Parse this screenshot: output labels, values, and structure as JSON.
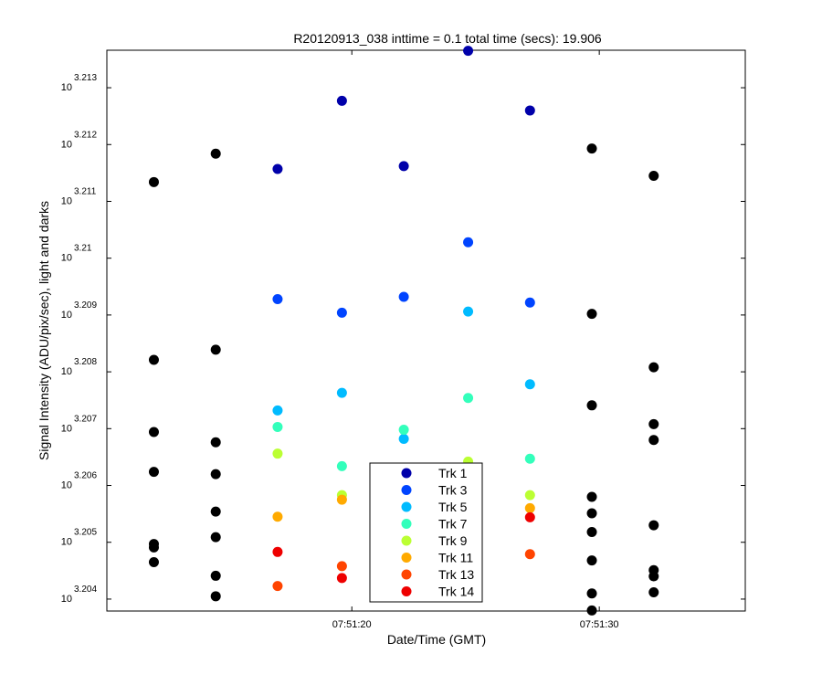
{
  "chart_data": {
    "type": "scatter",
    "title": "R20120913_038 inttime = 0.1 total time (secs): 19.906",
    "xlabel": "Date/Time (GMT)",
    "ylabel": "Signal Intensity (ADU/pix/sec), light and darks",
    "y_scale": "log10",
    "x_ticks": [
      {
        "t": 20,
        "label": "07:51:20"
      },
      {
        "t": 30,
        "label": "07:51:30"
      }
    ],
    "y_ticks": [
      {
        "exp": 3.204,
        "base": "10",
        "sup": "3.204"
      },
      {
        "exp": 3.205,
        "base": "10",
        "sup": "3.205"
      },
      {
        "exp": 3.206,
        "base": "10",
        "sup": "3.206"
      },
      {
        "exp": 3.207,
        "base": "10",
        "sup": "3.207"
      },
      {
        "exp": 3.208,
        "base": "10",
        "sup": "3.208"
      },
      {
        "exp": 3.209,
        "base": "10",
        "sup": "3.209"
      },
      {
        "exp": 3.21,
        "base": "10",
        "sup": "3.21"
      },
      {
        "exp": 3.211,
        "base": "10",
        "sup": "3.211"
      },
      {
        "exp": 3.212,
        "base": "10",
        "sup": "3.212"
      },
      {
        "exp": 3.213,
        "base": "10",
        "sup": "3.213"
      }
    ],
    "xlim": [
      10.1,
      35.9
    ],
    "ylim_exp": [
      3.20379,
      3.21366
    ],
    "grid": false,
    "legend_position": "bottom-center",
    "series": [
      {
        "name": "Trk 1",
        "color": "#0000aa",
        "x": [
          17.0,
          19.6,
          22.1,
          24.7,
          27.2
        ],
        "y": [
          3.21157,
          3.21277,
          3.21162,
          3.21365,
          3.2126
        ]
      },
      {
        "name": "Trk 3",
        "color": "#0044ff",
        "x": [
          17.0,
          19.6,
          22.1,
          24.7,
          27.2
        ],
        "y": [
          3.20928,
          3.20904,
          3.20932,
          3.21028,
          3.20922
        ]
      },
      {
        "name": "Trk 5",
        "color": "#00bbff",
        "x": [
          17.0,
          19.6,
          22.1,
          24.7,
          27.2
        ],
        "y": [
          3.20732,
          3.20763,
          3.20682,
          3.20906,
          3.20778
        ]
      },
      {
        "name": "Trk 7",
        "color": "#33ffbb",
        "x": [
          17.0,
          19.6,
          22.1,
          24.7,
          27.2
        ],
        "y": [
          3.20703,
          3.20634,
          3.20698,
          3.20754,
          3.20647
        ]
      },
      {
        "name": "Trk 9",
        "color": "#bbff33",
        "x": [
          17.0,
          19.6,
          22.1,
          24.7,
          27.2
        ],
        "y": [
          3.20656,
          3.20583,
          3.20583,
          3.20642,
          3.20583
        ]
      },
      {
        "name": "Trk 11",
        "color": "#ffaa00",
        "x": [
          17.0,
          19.6,
          27.2
        ],
        "y": [
          3.20545,
          3.20575,
          3.2056
        ]
      },
      {
        "name": "Trk 13",
        "color": "#ff4400",
        "x": [
          17.0,
          19.6,
          27.2
        ],
        "y": [
          3.20423,
          3.20458,
          3.20479
        ]
      },
      {
        "name": "Trk 14",
        "color": "#ee0000",
        "x": [
          17.0,
          19.6,
          27.2
        ],
        "y": [
          3.20483,
          3.20437,
          3.20544
        ]
      }
    ],
    "dark_points": {
      "color": "#000000",
      "x": [
        12.0,
        12.0,
        12.0,
        12.0,
        12.0,
        12.0,
        12.0,
        14.5,
        14.5,
        14.5,
        14.5,
        14.5,
        14.5,
        14.5,
        14.5,
        29.7,
        29.7,
        29.7,
        29.7,
        29.7,
        29.7,
        29.7,
        29.7,
        29.7,
        32.2,
        32.2,
        32.2,
        32.2,
        32.2,
        32.2,
        32.2,
        32.2
      ],
      "y": [
        3.21134,
        3.20821,
        3.20694,
        3.20624,
        3.20497,
        3.20491,
        3.20465,
        3.20405,
        3.21184,
        3.20839,
        3.20676,
        3.2062,
        3.20554,
        3.20509,
        3.20441,
        3.2041,
        3.21193,
        3.20902,
        3.20741,
        3.2058,
        3.20551,
        3.20518,
        3.20468,
        3.2038,
        3.21145,
        3.20808,
        3.20708,
        3.2068,
        3.2053,
        3.20451,
        3.2044,
        3.20412
      ]
    }
  }
}
